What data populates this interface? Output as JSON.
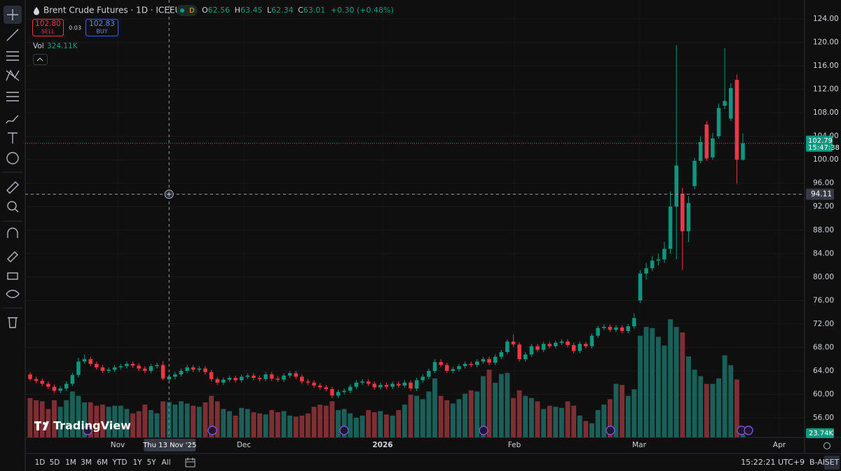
{
  "header": {
    "symbol": "Brent Crude Futures · 1D · ICEEUR",
    "badge": "D",
    "ohlc_labels": [
      "O",
      "H",
      "L",
      "C"
    ],
    "change": "+0.30 (+0.48%)",
    "sell_price": "102.80",
    "sell": "SELL",
    "spread": "0.03",
    "buy_price": "102.83",
    "buy": "BUY",
    "vol_label": "Vol",
    "vol_value": "324.11K"
  },
  "chart_data": {
    "type": "candlestick",
    "up_color": "#089981",
    "down_color": "#f23645",
    "volume_up_color": "#1c5f58",
    "volume_down_color": "#7d2f33",
    "ylim": [
      52.66,
      127.22
    ],
    "yticks": [
      {
        "value": 56,
        "label": "56.00"
      },
      {
        "value": 60,
        "label": "60.00"
      },
      {
        "value": 64,
        "label": "64.00"
      },
      {
        "value": 68,
        "label": "68.00"
      },
      {
        "value": 72,
        "label": "72.00"
      },
      {
        "value": 76,
        "label": "76.00"
      },
      {
        "value": 80,
        "label": "80.00"
      },
      {
        "value": 84,
        "label": "84.00"
      },
      {
        "value": 88,
        "label": "88.00"
      },
      {
        "value": 92,
        "label": "92.00"
      },
      {
        "value": 96,
        "label": "96.00"
      },
      {
        "value": 100,
        "label": "100.00"
      },
      {
        "value": 104,
        "label": "104.00"
      },
      {
        "value": 108,
        "label": "108.00"
      },
      {
        "value": 112,
        "label": "112.00"
      },
      {
        "value": 116,
        "label": "116.00"
      },
      {
        "value": 120,
        "label": "120.00"
      },
      {
        "value": 124,
        "label": "124.00"
      }
    ],
    "volume_lim": [
      0,
      4000
    ],
    "x_labels": [
      "Nov",
      "Dec",
      "2026",
      "Feb",
      "Mar",
      "Apr"
    ],
    "crosshair_date": "Thu 13 Nov '25",
    "crosshair_price": 94.11,
    "last_price": 102.79,
    "countdown": "15:47:38",
    "last_volume_label": "23.74K",
    "ohlc": [
      [
        63.4,
        63.8,
        62.3,
        62.6
      ],
      [
        62.6,
        63.0,
        61.9,
        62.3
      ],
      [
        62.3,
        62.7,
        61.4,
        61.8
      ],
      [
        61.8,
        62.2,
        60.9,
        61.3
      ],
      [
        61.3,
        61.7,
        60.2,
        60.6
      ],
      [
        60.6,
        61.4,
        60.2,
        61.0
      ],
      [
        61.0,
        62.2,
        60.6,
        61.8
      ],
      [
        61.8,
        63.7,
        61.4,
        63.3
      ],
      [
        63.3,
        66.2,
        62.9,
        65.6
      ],
      [
        65.6,
        66.8,
        65.2,
        66.0
      ],
      [
        66.0,
        66.4,
        64.8,
        65.2
      ],
      [
        65.2,
        65.6,
        64.2,
        64.6
      ],
      [
        64.6,
        65.0,
        63.6,
        64.0
      ],
      [
        64.0,
        64.6,
        63.6,
        64.2
      ],
      [
        64.2,
        65.0,
        63.8,
        64.6
      ],
      [
        64.6,
        65.2,
        64.2,
        64.8
      ],
      [
        64.8,
        65.6,
        64.4,
        65.2
      ],
      [
        65.2,
        65.6,
        64.5,
        64.9
      ],
      [
        64.9,
        65.3,
        64.0,
        64.4
      ],
      [
        64.4,
        64.8,
        63.6,
        64.0
      ],
      [
        64.0,
        65.2,
        63.6,
        64.8
      ],
      [
        64.8,
        65.4,
        64.4,
        65.0
      ],
      [
        65.0,
        65.7,
        62.4,
        62.7
      ],
      [
        62.56,
        63.45,
        62.34,
        63.01
      ],
      [
        63.0,
        63.8,
        62.6,
        63.4
      ],
      [
        63.4,
        64.4,
        63.0,
        64.0
      ],
      [
        64.0,
        65.0,
        63.6,
        64.6
      ],
      [
        64.6,
        65.0,
        63.8,
        64.2
      ],
      [
        64.2,
        64.8,
        63.8,
        64.4
      ],
      [
        64.4,
        64.8,
        63.4,
        63.8
      ],
      [
        63.8,
        64.2,
        62.2,
        62.6
      ],
      [
        62.6,
        63.0,
        61.6,
        62.0
      ],
      [
        62.0,
        62.9,
        61.6,
        62.5
      ],
      [
        62.5,
        63.2,
        62.1,
        62.8
      ],
      [
        62.8,
        63.2,
        62.0,
        62.4
      ],
      [
        62.4,
        63.4,
        62.0,
        63.0
      ],
      [
        63.0,
        63.6,
        62.6,
        63.2
      ],
      [
        63.2,
        63.6,
        62.4,
        62.8
      ],
      [
        62.8,
        63.2,
        62.2,
        62.6
      ],
      [
        62.6,
        63.8,
        62.2,
        63.4
      ],
      [
        63.4,
        63.8,
        62.3,
        62.7
      ],
      [
        62.7,
        63.1,
        62.1,
        62.5
      ],
      [
        62.5,
        63.6,
        62.1,
        63.2
      ],
      [
        63.2,
        64.0,
        62.8,
        63.6
      ],
      [
        63.6,
        64.0,
        62.6,
        63.0
      ],
      [
        63.0,
        63.4,
        61.8,
        62.2
      ],
      [
        62.2,
        62.6,
        61.6,
        62.0
      ],
      [
        62.0,
        62.4,
        61.1,
        61.5
      ],
      [
        61.5,
        61.9,
        60.8,
        61.2
      ],
      [
        61.2,
        61.6,
        60.5,
        60.9
      ],
      [
        60.9,
        61.3,
        59.4,
        59.8
      ],
      [
        59.8,
        60.8,
        59.4,
        60.4
      ],
      [
        60.4,
        61.0,
        60.0,
        60.6
      ],
      [
        60.6,
        61.7,
        60.2,
        61.3
      ],
      [
        61.3,
        62.4,
        60.9,
        62.0
      ],
      [
        62.0,
        62.6,
        61.6,
        62.2
      ],
      [
        62.2,
        62.6,
        61.4,
        61.8
      ],
      [
        61.8,
        62.2,
        60.8,
        61.2
      ],
      [
        61.2,
        62.0,
        60.8,
        61.6
      ],
      [
        61.6,
        62.0,
        60.9,
        61.3
      ],
      [
        61.3,
        62.2,
        60.9,
        61.8
      ],
      [
        61.8,
        62.2,
        61.1,
        61.5
      ],
      [
        61.5,
        62.4,
        61.1,
        62.0
      ],
      [
        62.0,
        62.4,
        60.6,
        61.0
      ],
      [
        61.0,
        62.8,
        60.6,
        62.4
      ],
      [
        62.4,
        63.4,
        62.0,
        63.0
      ],
      [
        63.0,
        64.4,
        62.6,
        64.0
      ],
      [
        64.0,
        66.0,
        63.6,
        65.5
      ],
      [
        65.5,
        66.0,
        64.6,
        65.0
      ],
      [
        65.0,
        65.4,
        63.6,
        64.0
      ],
      [
        64.0,
        64.7,
        63.6,
        64.3
      ],
      [
        64.3,
        65.2,
        63.9,
        64.8
      ],
      [
        64.8,
        65.6,
        64.4,
        65.2
      ],
      [
        65.2,
        65.6,
        64.6,
        65.0
      ],
      [
        65.0,
        66.0,
        64.6,
        65.6
      ],
      [
        65.6,
        66.4,
        65.2,
        66.0
      ],
      [
        66.0,
        66.4,
        65.0,
        65.4
      ],
      [
        65.4,
        66.8,
        65.0,
        66.4
      ],
      [
        66.4,
        67.6,
        66.0,
        67.2
      ],
      [
        67.2,
        69.4,
        66.8,
        69.0
      ],
      [
        69.0,
        70.2,
        68.1,
        68.5
      ],
      [
        68.5,
        68.9,
        65.6,
        66.0
      ],
      [
        66.0,
        67.2,
        65.6,
        66.8
      ],
      [
        66.8,
        68.6,
        66.4,
        68.2
      ],
      [
        68.2,
        68.6,
        67.2,
        67.6
      ],
      [
        67.6,
        69.0,
        67.2,
        68.6
      ],
      [
        68.6,
        69.0,
        67.8,
        68.2
      ],
      [
        68.2,
        69.2,
        67.8,
        68.8
      ],
      [
        68.8,
        69.4,
        68.4,
        69.0
      ],
      [
        69.0,
        69.4,
        68.0,
        68.4
      ],
      [
        68.4,
        68.8,
        67.0,
        67.4
      ],
      [
        67.4,
        69.0,
        67.0,
        68.6
      ],
      [
        68.6,
        69.0,
        67.8,
        68.2
      ],
      [
        68.2,
        70.4,
        67.8,
        70.0
      ],
      [
        70.0,
        71.7,
        69.6,
        71.3
      ],
      [
        71.3,
        71.9,
        70.9,
        71.5
      ],
      [
        71.5,
        71.9,
        70.6,
        71.0
      ],
      [
        71.0,
        71.8,
        70.6,
        71.4
      ],
      [
        71.4,
        71.8,
        70.4,
        70.8
      ],
      [
        70.8,
        72.0,
        70.4,
        71.6
      ],
      [
        71.6,
        73.8,
        71.2,
        73.0
      ],
      [
        76.0,
        81.2,
        75.6,
        80.6
      ],
      [
        80.6,
        82.4,
        79.6,
        81.5
      ],
      [
        81.5,
        83.6,
        81.0,
        82.8
      ],
      [
        82.8,
        84.0,
        82.0,
        83.0
      ],
      [
        83.0,
        86.0,
        82.4,
        84.8
      ],
      [
        84.8,
        94.6,
        84.0,
        92.0
      ],
      [
        92.0,
        119.5,
        83.0,
        99.0
      ],
      [
        94.2,
        95.2,
        81.2,
        87.8
      ],
      [
        87.8,
        93.8,
        86.0,
        92.6
      ],
      [
        95.5,
        100.3,
        95.0,
        99.8
      ],
      [
        99.8,
        104.0,
        99.4,
        103.0
      ],
      [
        106.0,
        106.6,
        99.8,
        100.2
      ],
      [
        100.4,
        104.6,
        100.0,
        103.6
      ],
      [
        104.0,
        109.6,
        103.6,
        108.8
      ],
      [
        109.2,
        119.0,
        108.6,
        110.0
      ],
      [
        107.0,
        113.0,
        106.6,
        112.2
      ],
      [
        113.6,
        114.5,
        96.0,
        100.0
      ],
      [
        100.0,
        104.5,
        99.8,
        102.8
      ]
    ],
    "volume": [
      360,
      340,
      330,
      260,
      340,
      280,
      340,
      420,
      380,
      320,
      320,
      290,
      300,
      280,
      290,
      290,
      260,
      220,
      240,
      300,
      250,
      220,
      330,
      324.11,
      300,
      330,
      310,
      290,
      280,
      320,
      380,
      330,
      260,
      240,
      200,
      270,
      260,
      230,
      220,
      210,
      250,
      230,
      240,
      200,
      190,
      200,
      220,
      280,
      300,
      290,
      330,
      250,
      260,
      220,
      180,
      200,
      250,
      230,
      240,
      210,
      200,
      250,
      300,
      390,
      380,
      350,
      420,
      540,
      380,
      340,
      310,
      350,
      400,
      430,
      420,
      560,
      620,
      500,
      580,
      590,
      360,
      430,
      380,
      360,
      330,
      260,
      290,
      280,
      270,
      330,
      290,
      200,
      150,
      130,
      250,
      300,
      350,
      490,
      480,
      380,
      440,
      930,
      1010,
      1000,
      920,
      840,
      1080,
      1010,
      960,
      740,
      620,
      560,
      490,
      490,
      540,
      750,
      660,
      530,
      23.74
    ]
  },
  "watermark": "TradingView",
  "bottom_bar": {
    "ranges": [
      "1D",
      "5D",
      "1M",
      "3M",
      "6M",
      "YTD",
      "1Y",
      "5Y",
      "All"
    ],
    "clock": "15:22:21 UTC+9",
    "adjust": "B-ADJ",
    "session": "SET"
  }
}
